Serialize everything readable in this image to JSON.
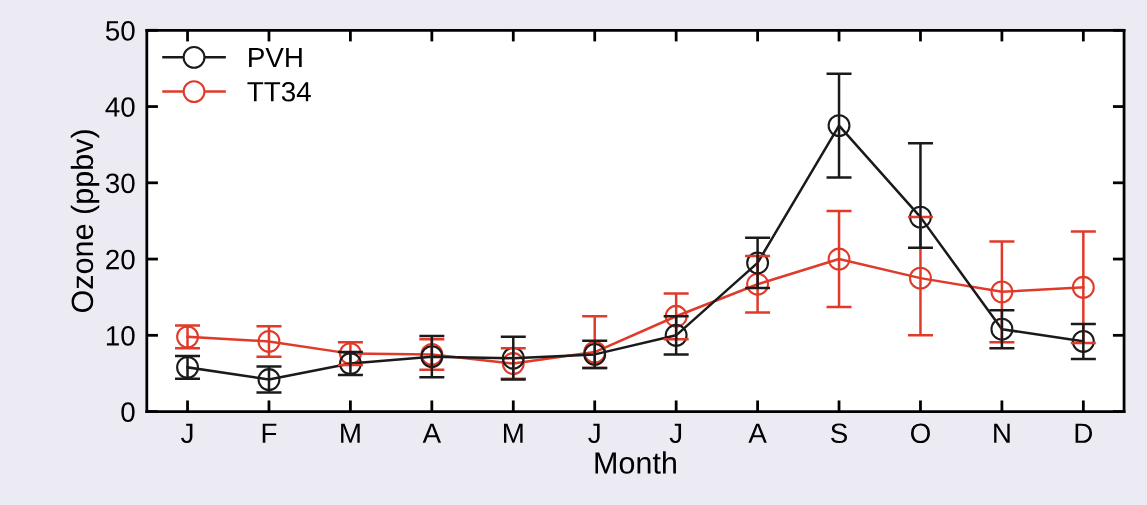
{
  "chart_data": {
    "type": "line",
    "xlabel": "Month",
    "ylabel": "Ozone (ppbv)",
    "categories": [
      "J",
      "F",
      "M",
      "A",
      "M",
      "J",
      "J",
      "A",
      "S",
      "O",
      "N",
      "D"
    ],
    "series": [
      {
        "name": "PVH",
        "color": "#1a1a1a",
        "values": [
          5.8,
          4.2,
          6.3,
          7.2,
          7.0,
          7.5,
          10.0,
          19.5,
          37.5,
          25.5,
          10.8,
          9.2
        ],
        "errors": [
          1.5,
          1.7,
          1.5,
          2.7,
          2.8,
          1.8,
          2.5,
          3.3,
          6.8,
          [
            21.5,
            35.2
          ],
          2.5,
          2.3
        ]
      },
      {
        "name": "TT34",
        "color": "#e03a2a",
        "values": [
          9.8,
          9.2,
          7.6,
          7.5,
          6.3,
          7.8,
          12.5,
          16.7,
          20.0,
          17.5,
          15.7,
          16.3
        ],
        "errors": [
          1.5,
          2.0,
          1.5,
          2.0,
          2.0,
          [
            5.7,
            12.5
          ],
          3.0,
          3.7,
          6.3,
          [
            10.0,
            25.5
          ],
          6.6,
          7.3
        ]
      }
    ],
    "ylim": [
      0,
      50
    ],
    "yticks": [
      0,
      10,
      20,
      30,
      40,
      50
    ],
    "marker": "circle",
    "line_style": "solid",
    "legend": "top left",
    "grid": false
  }
}
